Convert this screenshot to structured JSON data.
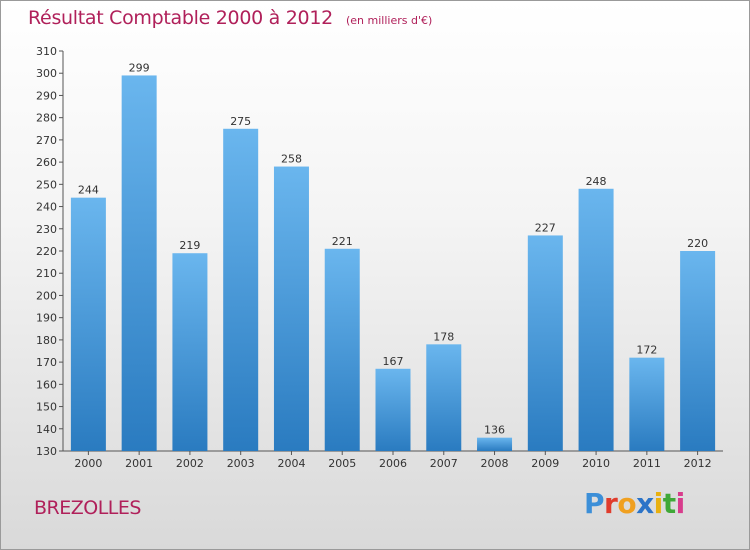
{
  "header": {
    "title": "Résultat Comptable 2000 à 2012",
    "unit": "(en milliers d'€)"
  },
  "footer": {
    "city": "BREZOLLES",
    "logo_letters": [
      {
        "ch": "P",
        "color": "#3c8fd8"
      },
      {
        "ch": "r",
        "color": "#e03c2c"
      },
      {
        "ch": "o",
        "color": "#f0a020"
      },
      {
        "ch": "x",
        "color": "#2c74c8"
      },
      {
        "ch": "i",
        "color": "#e8b010"
      },
      {
        "ch": "t",
        "color": "#40a838"
      },
      {
        "ch": "i",
        "color": "#d83c8c"
      }
    ]
  },
  "colors": {
    "bar_top": "#6ab6ee",
    "bar_bottom": "#2a7bc0",
    "accent": "#b0205a"
  },
  "chart_data": {
    "type": "bar",
    "title": "Résultat Comptable 2000 à 2012",
    "subtitle": "(en milliers d'€)",
    "categories": [
      "2000",
      "2001",
      "2002",
      "2003",
      "2004",
      "2005",
      "2006",
      "2007",
      "2008",
      "2009",
      "2010",
      "2011",
      "2012"
    ],
    "values": [
      244,
      299,
      219,
      275,
      258,
      221,
      167,
      178,
      136,
      227,
      248,
      172,
      220
    ],
    "ylim": [
      130,
      310
    ],
    "yticks": [
      130,
      140,
      150,
      160,
      170,
      180,
      190,
      200,
      210,
      220,
      230,
      240,
      250,
      260,
      270,
      280,
      290,
      300,
      310
    ],
    "grid": false,
    "legend": "none"
  }
}
